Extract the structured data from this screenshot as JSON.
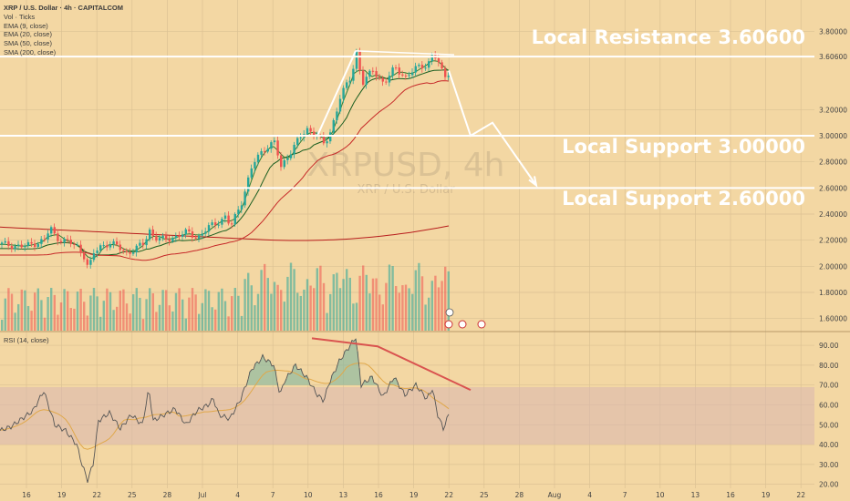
{
  "header": {
    "title": "XRP / U.S. Dollar · 4h · CAPITALCOM",
    "indicators": [
      "Vol · Ticks",
      "EMA (9, close)",
      "EMA (20, close)",
      "SMA (50, close)",
      "SMA (200, close)"
    ]
  },
  "watermark": {
    "symbol": "XRPUSD, 4h",
    "name": "XRP / U.S. Dollar"
  },
  "annotations": {
    "resistance": "Local Resistance 3.60600",
    "support1": "Local Support 3.00000",
    "support2": "Local Support 2.60000"
  },
  "rsi": {
    "label": "RSI (14, close)"
  },
  "colors": {
    "background": "#f3d7a3",
    "bull": "#26a69a",
    "bear": "#ef5350",
    "annotation": "#ffffff",
    "rsi_line": "#555555",
    "trend_line": "#d9534f"
  },
  "chart_data": {
    "type": "line",
    "price_axis": {
      "ticks": [
        "3.80000",
        "3.60600",
        "3.20000",
        "3.00000",
        "2.80000",
        "2.60000",
        "2.40000",
        "2.20000",
        "2.00000",
        "1.80000",
        "1.60000"
      ],
      "ylim": [
        1.5,
        3.9
      ]
    },
    "rsi_axis": {
      "ticks": [
        "90.00",
        "80.00",
        "70.00",
        "60.00",
        "50.00",
        "40.00",
        "30.00",
        "20.00"
      ],
      "ylim": [
        18,
        96
      ]
    },
    "x_ticks": [
      "16",
      "19",
      "22",
      "25",
      "28",
      "Jul",
      "4",
      "7",
      "10",
      "13",
      "16",
      "19",
      "22",
      "25",
      "28",
      "Aug",
      "4",
      "7",
      "10",
      "13",
      "16",
      "19",
      "22"
    ],
    "levels": [
      3.606,
      3.0,
      2.6
    ],
    "price_path": [
      [
        0,
        2.17
      ],
      [
        2,
        2.15
      ],
      [
        4,
        2.2
      ],
      [
        4.5,
        2.3
      ],
      [
        5,
        2.22
      ],
      [
        6,
        2.19
      ],
      [
        7,
        2.15
      ],
      [
        7.6,
        2.08
      ],
      [
        8,
        1.98
      ],
      [
        8.5,
        2.1
      ],
      [
        9,
        2.15
      ],
      [
        10,
        2.18
      ],
      [
        11,
        2.13
      ],
      [
        11.5,
        2.1
      ],
      [
        12,
        2.12
      ],
      [
        13,
        2.17
      ],
      [
        13.6,
        2.28
      ],
      [
        14,
        2.22
      ],
      [
        15,
        2.2
      ],
      [
        16,
        2.23
      ],
      [
        17,
        2.26
      ],
      [
        18,
        2.22
      ],
      [
        19,
        2.3
      ],
      [
        20,
        2.35
      ],
      [
        20.5,
        2.38
      ],
      [
        21,
        2.3
      ],
      [
        22,
        2.5
      ],
      [
        23,
        2.78
      ],
      [
        24,
        2.9
      ],
      [
        25,
        2.95
      ],
      [
        25.6,
        2.75
      ],
      [
        26,
        2.82
      ],
      [
        27,
        2.95
      ],
      [
        28,
        3.05
      ],
      [
        29,
        3.0
      ],
      [
        29.5,
        2.93
      ],
      [
        30,
        3.0
      ],
      [
        31,
        3.3
      ],
      [
        32,
        3.45
      ],
      [
        32.5,
        3.65
      ],
      [
        33,
        3.4
      ],
      [
        34,
        3.5
      ],
      [
        35,
        3.4
      ],
      [
        36,
        3.52
      ],
      [
        37,
        3.45
      ],
      [
        38,
        3.52
      ],
      [
        39,
        3.55
      ],
      [
        39.5,
        3.63
      ],
      [
        40,
        3.55
      ],
      [
        40.5,
        3.45
      ],
      [
        41,
        3.5
      ]
    ],
    "projection": [
      [
        41,
        3.5
      ],
      [
        43,
        3.0
      ],
      [
        45,
        3.1
      ],
      [
        49,
        2.62
      ]
    ],
    "rsi_path": [
      [
        0,
        47
      ],
      [
        1,
        49
      ],
      [
        2,
        53
      ],
      [
        3,
        57
      ],
      [
        4,
        67
      ],
      [
        5,
        50
      ],
      [
        6,
        47
      ],
      [
        7,
        40
      ],
      [
        7.5,
        30
      ],
      [
        8,
        22
      ],
      [
        8.5,
        30
      ],
      [
        9,
        52
      ],
      [
        10,
        56
      ],
      [
        11,
        48
      ],
      [
        12,
        55
      ],
      [
        13,
        50
      ],
      [
        13.6,
        68
      ],
      [
        14,
        52
      ],
      [
        15,
        55
      ],
      [
        16,
        58
      ],
      [
        17,
        50
      ],
      [
        18,
        57
      ],
      [
        19,
        60
      ],
      [
        19.5,
        63
      ],
      [
        20,
        55
      ],
      [
        21,
        53
      ],
      [
        22,
        63
      ],
      [
        23,
        78
      ],
      [
        24,
        84
      ],
      [
        25,
        80
      ],
      [
        25.6,
        65
      ],
      [
        26,
        72
      ],
      [
        27,
        80
      ],
      [
        28,
        74
      ],
      [
        29,
        65
      ],
      [
        29.6,
        62
      ],
      [
        30,
        70
      ],
      [
        31,
        82
      ],
      [
        32,
        90
      ],
      [
        32.5,
        94
      ],
      [
        33,
        70
      ],
      [
        34,
        74
      ],
      [
        35,
        64
      ],
      [
        36,
        74
      ],
      [
        37,
        65
      ],
      [
        38,
        70
      ],
      [
        39,
        63
      ],
      [
        39.5,
        68
      ],
      [
        40,
        55
      ],
      [
        40.5,
        48
      ],
      [
        41,
        55
      ]
    ],
    "rsi_divergence": [
      [
        26.5,
        93.5
      ],
      [
        32.5,
        89.5
      ],
      [
        41,
        67.5
      ]
    ]
  }
}
